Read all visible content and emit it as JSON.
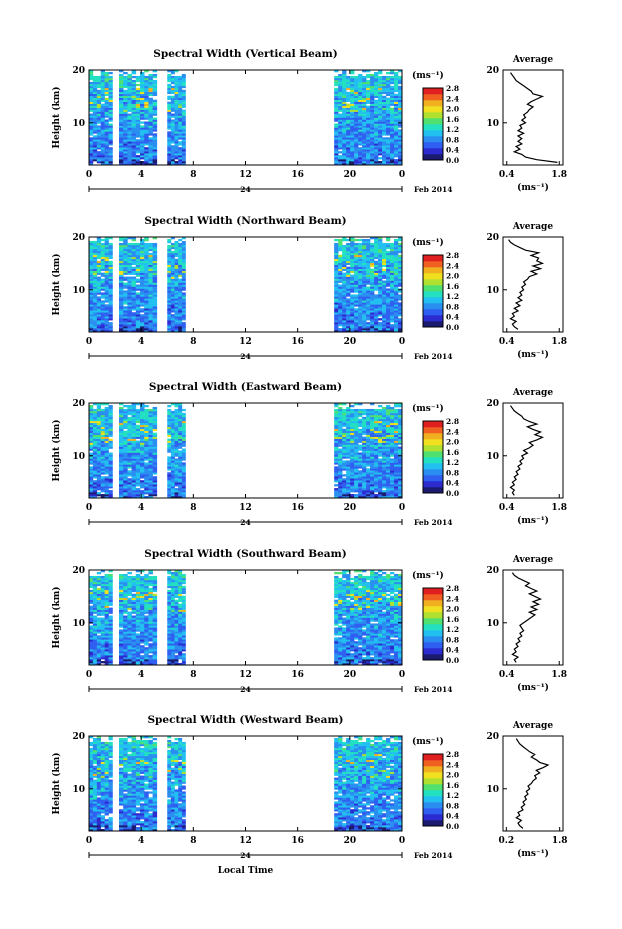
{
  "colors": {
    "colormap": [
      "#1a1a6e",
      "#2b2bd0",
      "#2f5ff0",
      "#2a8ef0",
      "#22c0f0",
      "#22e0c0",
      "#50e070",
      "#b0e030",
      "#f0e020",
      "#f0b020",
      "#f06020",
      "#e02020"
    ],
    "line": "#000000"
  },
  "chart_data": [
    {
      "type": "heatmap",
      "title": "Spectral Width (Vertical Beam)",
      "ylabel": "Height (km)",
      "x_ticks": [
        "0",
        "4",
        "8",
        "12",
        "16",
        "20",
        "0"
      ],
      "y_ticks": [
        "20",
        "10"
      ],
      "date_label": "24",
      "month_label": "Feb 2014",
      "xlim": [
        0,
        24
      ],
      "ylim": [
        2,
        20
      ],
      "data_blocks": [
        [
          0,
          1.8
        ],
        [
          2.3,
          5.2
        ],
        [
          6,
          7.4
        ],
        [
          18.8,
          24
        ]
      ],
      "colorbar": {
        "unit": "(ms⁻¹)",
        "ticks": [
          "2.8",
          "2.4",
          "2.0",
          "1.6",
          "1.2",
          "0.8",
          "0.4",
          "0.0"
        ]
      },
      "average": {
        "title": "Average",
        "xlabel": "(ms⁻¹)",
        "x_ticks": [
          "0.4",
          "1.8"
        ],
        "xlim": [
          0.3,
          1.9
        ],
        "y_ticks": [
          "20",
          "10"
        ],
        "profile": [
          [
            1.75,
            2.5
          ],
          [
            1.2,
            3
          ],
          [
            0.9,
            3.5
          ],
          [
            0.8,
            4
          ],
          [
            0.6,
            4.5
          ],
          [
            0.75,
            5
          ],
          [
            0.65,
            5.5
          ],
          [
            0.8,
            6
          ],
          [
            0.7,
            6.5
          ],
          [
            0.8,
            7
          ],
          [
            0.7,
            7.5
          ],
          [
            0.85,
            8
          ],
          [
            0.7,
            8.5
          ],
          [
            0.8,
            9
          ],
          [
            0.75,
            9.5
          ],
          [
            0.9,
            10
          ],
          [
            0.8,
            10.5
          ],
          [
            0.9,
            11
          ],
          [
            0.85,
            11.5
          ],
          [
            0.95,
            12
          ],
          [
            1.0,
            12.5
          ],
          [
            1.1,
            13
          ],
          [
            0.95,
            13.5
          ],
          [
            1.05,
            14
          ],
          [
            1.2,
            14.5
          ],
          [
            1.35,
            15
          ],
          [
            1.1,
            15.5
          ],
          [
            1.05,
            16
          ],
          [
            0.95,
            16.5
          ],
          [
            0.85,
            17
          ],
          [
            0.75,
            17.5
          ],
          [
            0.65,
            18
          ],
          [
            0.6,
            18.5
          ],
          [
            0.55,
            19
          ],
          [
            0.5,
            19.5
          ]
        ]
      }
    },
    {
      "type": "heatmap",
      "title": "Spectral Width (Northward Beam)",
      "ylabel": "Height (km)",
      "x_ticks": [
        "0",
        "4",
        "8",
        "12",
        "16",
        "20",
        "0"
      ],
      "y_ticks": [
        "20",
        "10"
      ],
      "date_label": "24",
      "month_label": "Feb 2014",
      "xlim": [
        0,
        24
      ],
      "ylim": [
        2,
        20
      ],
      "data_blocks": [
        [
          0,
          1.8
        ],
        [
          2.3,
          5.2
        ],
        [
          6,
          7.4
        ],
        [
          18.8,
          24
        ]
      ],
      "colorbar": {
        "unit": "(ms⁻¹)",
        "ticks": [
          "2.8",
          "2.4",
          "2.0",
          "1.6",
          "1.2",
          "0.8",
          "0.4",
          "0.0"
        ]
      },
      "average": {
        "title": "Average",
        "xlabel": "(ms⁻¹)",
        "x_ticks": [
          "0.4",
          "1.8"
        ],
        "xlim": [
          0.3,
          1.9
        ],
        "y_ticks": [
          "20",
          "10"
        ],
        "profile": [
          [
            0.7,
            2.5
          ],
          [
            0.6,
            3
          ],
          [
            0.55,
            3.5
          ],
          [
            0.65,
            4
          ],
          [
            0.5,
            4.5
          ],
          [
            0.6,
            5
          ],
          [
            0.55,
            5.5
          ],
          [
            0.7,
            6
          ],
          [
            0.6,
            6.5
          ],
          [
            0.75,
            7
          ],
          [
            0.65,
            7.5
          ],
          [
            0.8,
            8
          ],
          [
            0.7,
            8.5
          ],
          [
            0.8,
            9
          ],
          [
            0.75,
            9.5
          ],
          [
            0.85,
            10
          ],
          [
            0.8,
            10.5
          ],
          [
            0.9,
            11
          ],
          [
            0.85,
            11.5
          ],
          [
            0.95,
            12
          ],
          [
            1.0,
            12.5
          ],
          [
            1.2,
            13
          ],
          [
            1.05,
            13.5
          ],
          [
            1.3,
            14
          ],
          [
            1.1,
            14.5
          ],
          [
            1.35,
            15
          ],
          [
            1.2,
            15.5
          ],
          [
            1.25,
            16
          ],
          [
            1.05,
            16.5
          ],
          [
            1.25,
            17
          ],
          [
            0.9,
            17.5
          ],
          [
            0.75,
            18
          ],
          [
            0.6,
            18.5
          ],
          [
            0.5,
            19
          ],
          [
            0.45,
            19.5
          ]
        ]
      }
    },
    {
      "type": "heatmap",
      "title": "Spectral Width (Eastward Beam)",
      "ylabel": "Height (km)",
      "x_ticks": [
        "0",
        "4",
        "8",
        "12",
        "16",
        "20",
        "0"
      ],
      "y_ticks": [
        "20",
        "10"
      ],
      "date_label": "24",
      "month_label": "Feb 2014",
      "xlim": [
        0,
        24
      ],
      "ylim": [
        2,
        20
      ],
      "data_blocks": [
        [
          0,
          1.8
        ],
        [
          2.3,
          5.2
        ],
        [
          6,
          7.4
        ],
        [
          18.8,
          24
        ]
      ],
      "colorbar": {
        "unit": "(ms⁻¹)",
        "ticks": [
          "2.8",
          "2.4",
          "2.0",
          "1.6",
          "1.2",
          "0.8",
          "0.4",
          "0.0"
        ]
      },
      "average": {
        "title": "Average",
        "xlabel": "(ms⁻¹)",
        "x_ticks": [
          "0.4",
          "1.8"
        ],
        "xlim": [
          0.3,
          1.9
        ],
        "y_ticks": [
          "20",
          "10"
        ],
        "profile": [
          [
            0.6,
            2.5
          ],
          [
            0.55,
            3
          ],
          [
            0.6,
            3.5
          ],
          [
            0.5,
            4
          ],
          [
            0.6,
            4.5
          ],
          [
            0.55,
            5
          ],
          [
            0.65,
            5.5
          ],
          [
            0.6,
            6
          ],
          [
            0.7,
            6.5
          ],
          [
            0.65,
            7
          ],
          [
            0.75,
            7.5
          ],
          [
            0.7,
            8
          ],
          [
            0.8,
            8.5
          ],
          [
            0.75,
            9
          ],
          [
            0.85,
            9.5
          ],
          [
            0.8,
            10
          ],
          [
            0.95,
            10.5
          ],
          [
            0.85,
            11
          ],
          [
            1.0,
            11.5
          ],
          [
            1.1,
            12
          ],
          [
            1.0,
            12.5
          ],
          [
            1.2,
            13
          ],
          [
            1.35,
            13.5
          ],
          [
            1.15,
            14
          ],
          [
            1.3,
            14.5
          ],
          [
            1.1,
            15
          ],
          [
            0.95,
            15.5
          ],
          [
            1.2,
            16
          ],
          [
            1.0,
            16.5
          ],
          [
            0.85,
            17
          ],
          [
            0.8,
            17.5
          ],
          [
            0.7,
            18
          ],
          [
            0.6,
            18.5
          ],
          [
            0.55,
            19
          ],
          [
            0.5,
            19.5
          ]
        ]
      }
    },
    {
      "type": "heatmap",
      "title": "Spectral Width (Southward Beam)",
      "ylabel": "Height (km)",
      "x_ticks": [
        "0",
        "4",
        "8",
        "12",
        "16",
        "20",
        "0"
      ],
      "y_ticks": [
        "20",
        "10"
      ],
      "date_label": "24",
      "month_label": "Feb 2014",
      "xlim": [
        0,
        24
      ],
      "ylim": [
        2,
        20
      ],
      "data_blocks": [
        [
          0,
          1.8
        ],
        [
          2.3,
          5.2
        ],
        [
          6,
          7.4
        ],
        [
          18.8,
          24
        ]
      ],
      "colorbar": {
        "unit": "(ms⁻¹)",
        "ticks": [
          "2.8",
          "2.4",
          "2.0",
          "1.6",
          "1.2",
          "0.8",
          "0.4",
          "0.0"
        ]
      },
      "average": {
        "title": "Average",
        "xlabel": "(ms⁻¹)",
        "x_ticks": [
          "0.4",
          "1.8"
        ],
        "xlim": [
          0.3,
          1.9
        ],
        "y_ticks": [
          "20",
          "10"
        ],
        "profile": [
          [
            0.65,
            2.5
          ],
          [
            0.6,
            3
          ],
          [
            0.7,
            3.5
          ],
          [
            0.55,
            4
          ],
          [
            0.65,
            4.5
          ],
          [
            0.6,
            5
          ],
          [
            0.7,
            5.5
          ],
          [
            0.65,
            6
          ],
          [
            0.75,
            6.5
          ],
          [
            0.7,
            7
          ],
          [
            0.8,
            7.5
          ],
          [
            0.75,
            8
          ],
          [
            0.85,
            8.5
          ],
          [
            0.8,
            9
          ],
          [
            0.75,
            9.5
          ],
          [
            0.85,
            10
          ],
          [
            0.95,
            10.5
          ],
          [
            1.05,
            11
          ],
          [
            1.15,
            11.5
          ],
          [
            1.0,
            12
          ],
          [
            1.2,
            12.5
          ],
          [
            1.05,
            13
          ],
          [
            1.25,
            13.5
          ],
          [
            1.1,
            14
          ],
          [
            1.3,
            14.5
          ],
          [
            1.15,
            15
          ],
          [
            1.0,
            15.5
          ],
          [
            1.2,
            16
          ],
          [
            1.05,
            16.5
          ],
          [
            0.9,
            17
          ],
          [
            1.0,
            17.5
          ],
          [
            0.85,
            18
          ],
          [
            0.7,
            18.5
          ],
          [
            0.6,
            19
          ],
          [
            0.55,
            19.5
          ]
        ]
      }
    },
    {
      "type": "heatmap",
      "title": "Spectral Width (Westward Beam)",
      "ylabel": "Height (km)",
      "xlabel": "Local Time",
      "x_ticks": [
        "0",
        "4",
        "8",
        "12",
        "16",
        "20",
        "0"
      ],
      "y_ticks": [
        "20",
        "10"
      ],
      "date_label": "24",
      "month_label": "Feb 2014",
      "xlim": [
        0,
        24
      ],
      "ylim": [
        2,
        20
      ],
      "data_blocks": [
        [
          0,
          1.8
        ],
        [
          2.3,
          5.2
        ],
        [
          6,
          7.4
        ],
        [
          18.8,
          24
        ]
      ],
      "colorbar": {
        "unit": "(ms⁻¹)",
        "ticks": [
          "2.8",
          "2.4",
          "2.0",
          "1.6",
          "1.2",
          "0.8",
          "0.4",
          "0.0"
        ]
      },
      "average": {
        "title": "Average",
        "xlabel": "(ms⁻¹)",
        "x_ticks": [
          "0.2",
          "1.8"
        ],
        "xlim": [
          0.1,
          1.9
        ],
        "y_ticks": [
          "20",
          "10"
        ],
        "profile": [
          [
            0.7,
            2.5
          ],
          [
            0.6,
            3
          ],
          [
            0.55,
            3.5
          ],
          [
            0.65,
            4
          ],
          [
            0.5,
            4.5
          ],
          [
            0.6,
            5
          ],
          [
            0.55,
            5.5
          ],
          [
            0.7,
            6
          ],
          [
            0.65,
            6.5
          ],
          [
            0.75,
            7
          ],
          [
            0.7,
            7.5
          ],
          [
            0.8,
            8
          ],
          [
            0.75,
            8.5
          ],
          [
            0.85,
            9
          ],
          [
            0.8,
            9.5
          ],
          [
            0.9,
            10
          ],
          [
            0.85,
            10.5
          ],
          [
            0.95,
            11
          ],
          [
            1.0,
            11.5
          ],
          [
            1.1,
            12
          ],
          [
            1.05,
            12.5
          ],
          [
            1.2,
            13
          ],
          [
            1.1,
            13.5
          ],
          [
            1.3,
            14
          ],
          [
            1.45,
            14.5
          ],
          [
            1.2,
            15
          ],
          [
            1.1,
            15.5
          ],
          [
            0.95,
            16
          ],
          [
            1.05,
            16.5
          ],
          [
            0.9,
            17
          ],
          [
            0.8,
            17.5
          ],
          [
            0.7,
            18
          ],
          [
            0.6,
            18.5
          ],
          [
            0.55,
            19
          ],
          [
            0.5,
            19.5
          ]
        ]
      }
    }
  ]
}
